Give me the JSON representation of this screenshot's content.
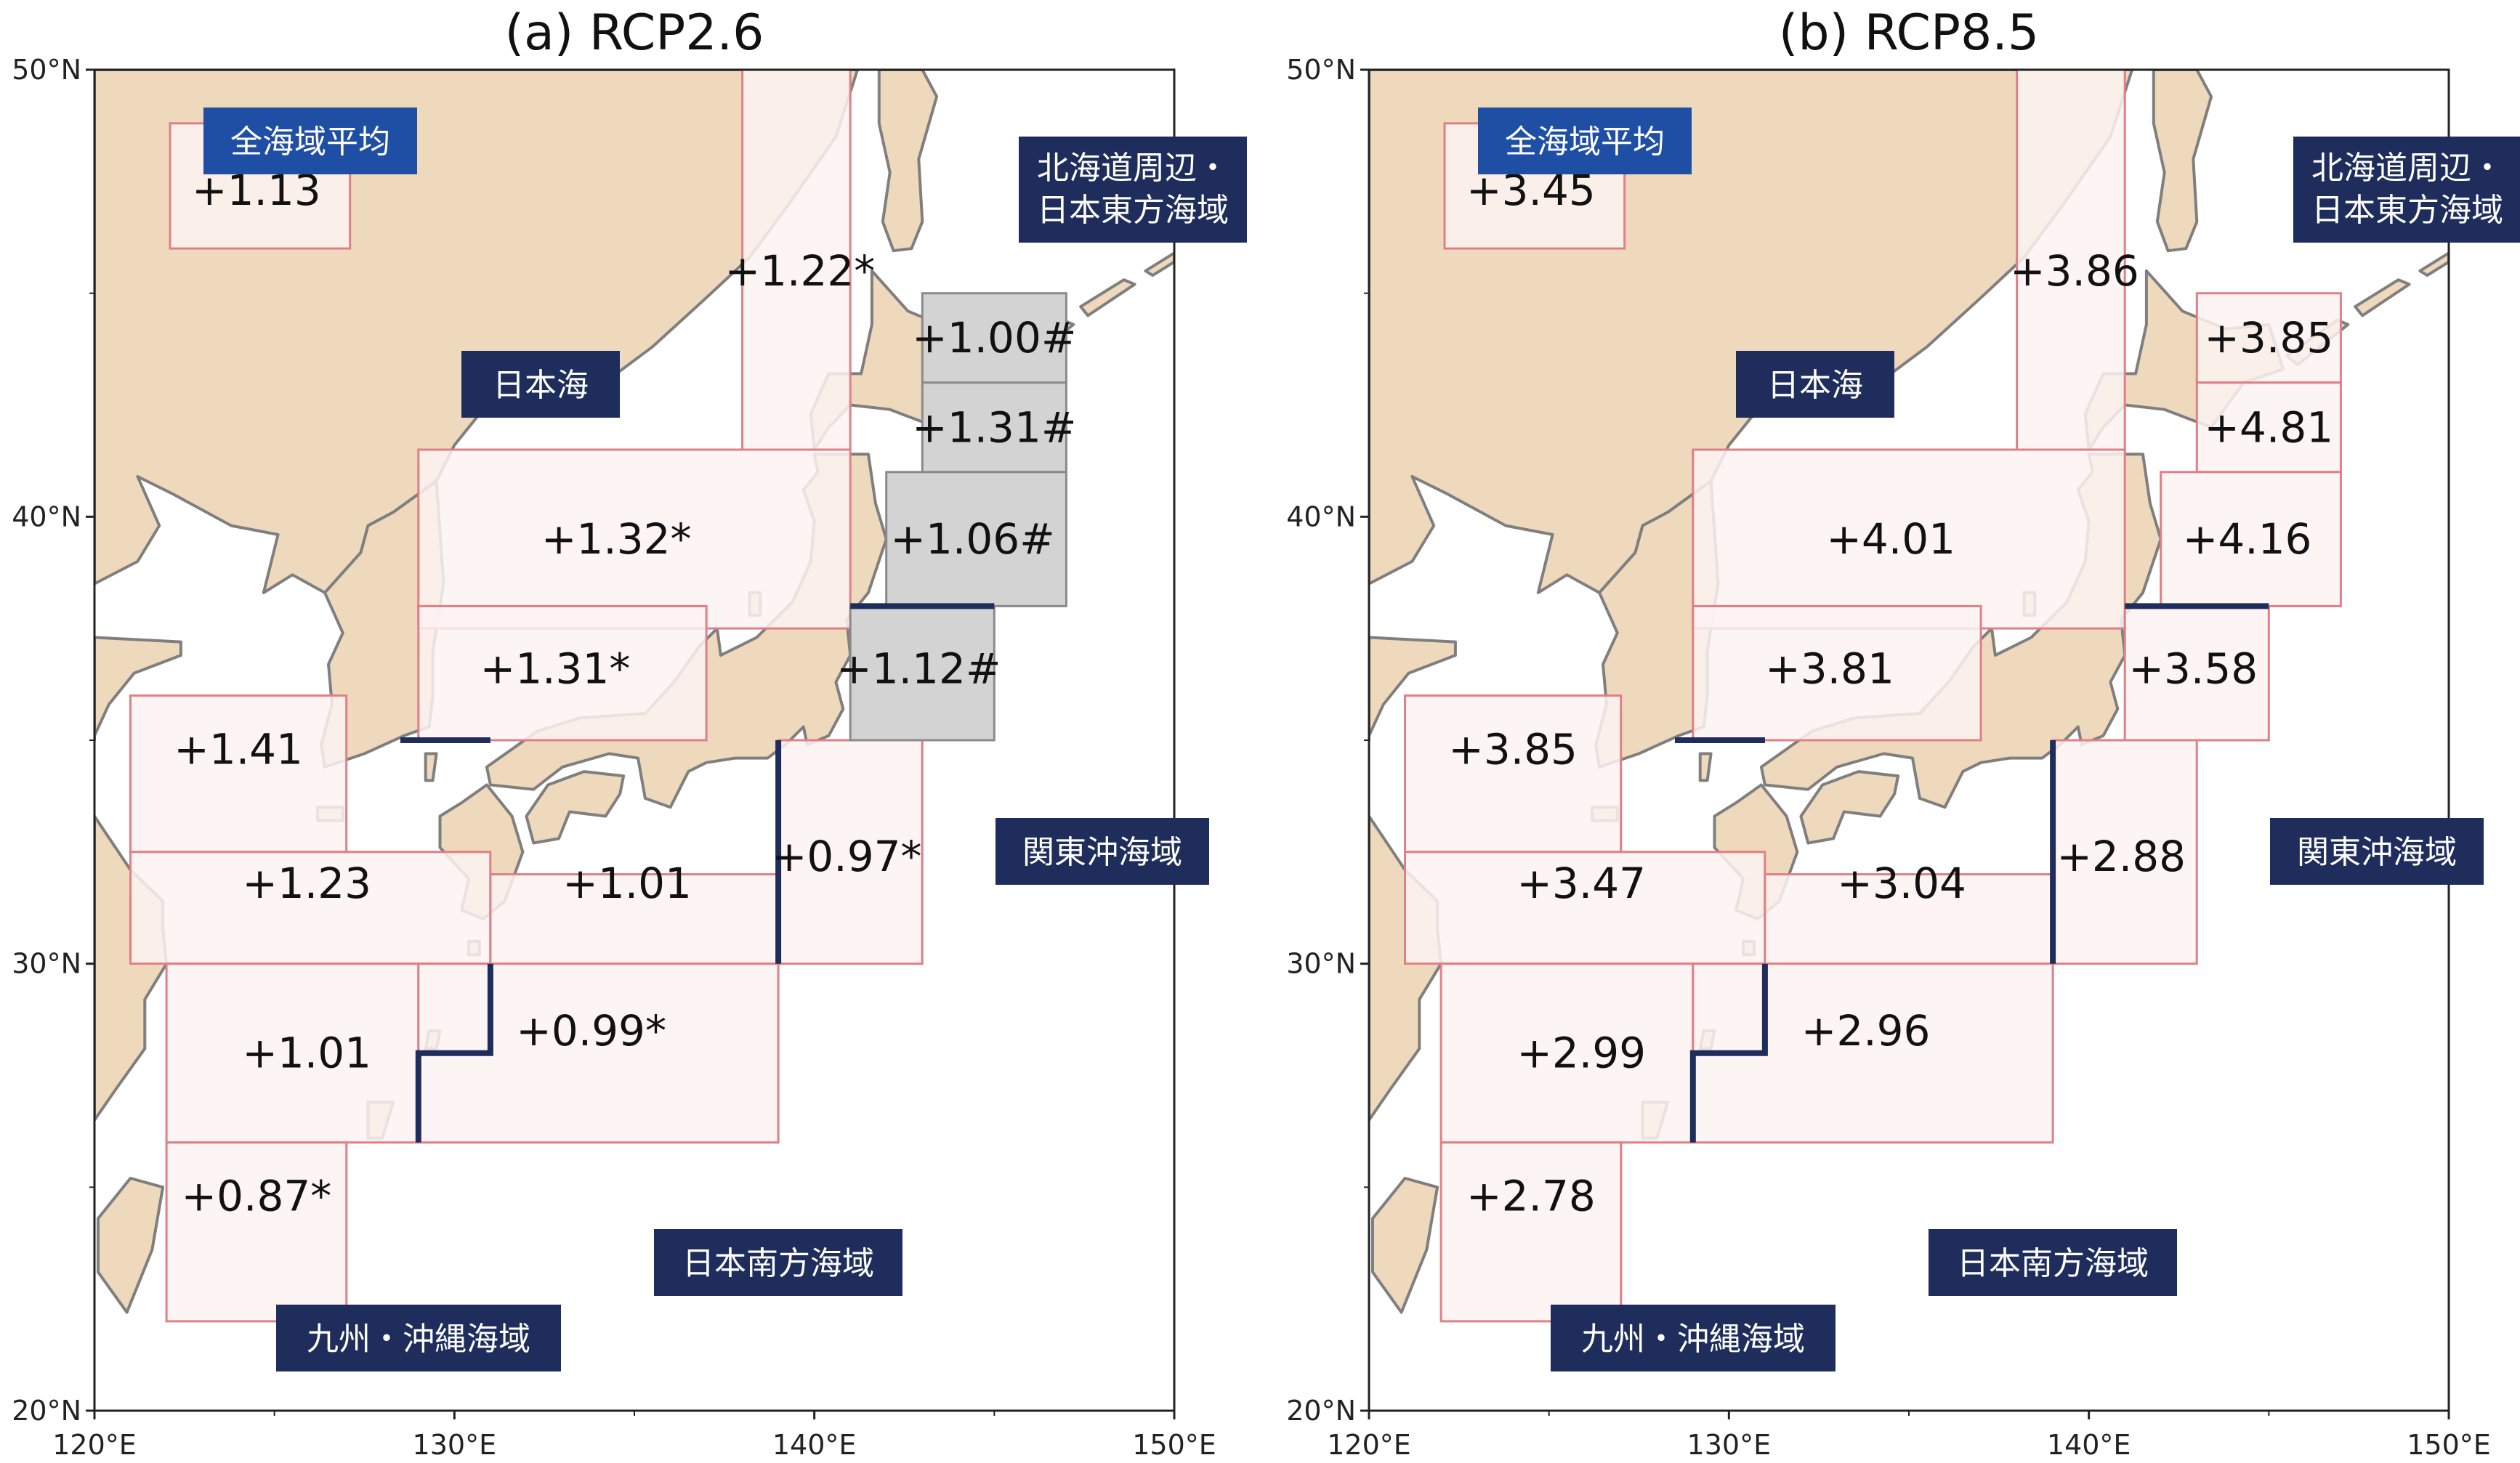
{
  "colors": {
    "land": "#efd9bd",
    "sea": "#ffffff",
    "box_fill": "#fdf2f2",
    "box_stroke": "#e07f86",
    "gray_box_fill": "#d3d3d3",
    "label_navy": "#1e2d5c",
    "label_blue": "#1f4ea5",
    "boundary_line": "#1e2d5c"
  },
  "axes": {
    "lon_ticks": [
      "120°E",
      "130°E",
      "140°E",
      "150°E"
    ],
    "lat_ticks": [
      "50°N",
      "40°N",
      "30°N",
      "20°N"
    ]
  },
  "region_labels": {
    "all_sea": "全海域平均",
    "hokkaido_east": "北海道周辺・日本東方海域",
    "japan_sea": "日本海",
    "kanto": "関東沖海域",
    "south_japan": "日本南方海域",
    "kyushu_okinawa": "九州・沖縄海域"
  },
  "panels": [
    {
      "title": "(a) RCP2.6",
      "values": {
        "all_sea": "+1.13",
        "jsea_north": "+1.22*",
        "jsea_central": "+1.32*",
        "jsea_south": "+1.31*",
        "tsushima": "+1.41",
        "east_china": "+1.23",
        "shikoku": "+1.01",
        "kanto_south": "+0.97*",
        "ryukyu": "+1.01",
        "south": "+0.99*",
        "south_ryukyu": "+0.87*",
        "hokkaido_n": "+1.00#",
        "hokkaido_e": "+1.31#",
        "tohoku": "+1.06#",
        "kanto_box": "+1.12#"
      }
    },
    {
      "title": "(b) RCP8.5",
      "values": {
        "all_sea": "+3.45",
        "jsea_north": "+3.86",
        "jsea_central": "+4.01",
        "jsea_south": "+3.81",
        "tsushima": "+3.85",
        "east_china": "+3.47",
        "shikoku": "+3.04",
        "kanto_south": "+2.88",
        "ryukyu": "+2.99",
        "south": "+2.96",
        "south_ryukyu": "+2.78",
        "hokkaido_n": "+3.85",
        "hokkaido_e": "+4.81",
        "tohoku": "+4.16",
        "kanto_box": "+3.58"
      }
    }
  ]
}
